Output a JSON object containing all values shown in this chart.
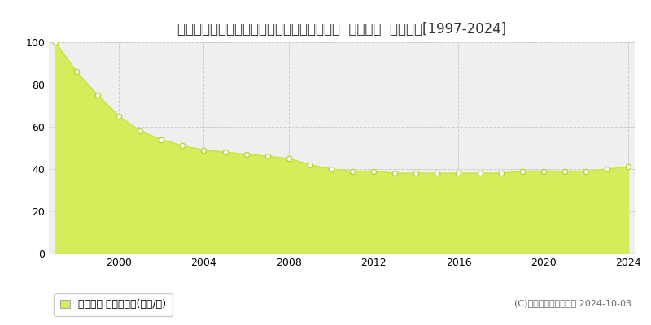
{
  "title": "千葉県松戸市小金きよしケ丘４丁目３番１１  基準地価  地価推移[1997-2024]",
  "years": [
    1997,
    1998,
    1999,
    2000,
    2001,
    2002,
    2003,
    2004,
    2005,
    2006,
    2007,
    2008,
    2009,
    2010,
    2011,
    2012,
    2013,
    2014,
    2015,
    2016,
    2017,
    2018,
    2019,
    2020,
    2021,
    2022,
    2023,
    2024
  ],
  "values": [
    100,
    86,
    75,
    65,
    58,
    54,
    51,
    49,
    48,
    47,
    46,
    45,
    42,
    40,
    39,
    39,
    38,
    38,
    38,
    38,
    38,
    38,
    39,
    39,
    39,
    39,
    40,
    41
  ],
  "line_color": "#c8e645",
  "fill_color": "#d4ed5a",
  "marker_color": "#ffffff",
  "marker_edge_color": "#b8d430",
  "bg_color": "#ffffff",
  "plot_bg_color": "#efefef",
  "grid_color": "#cccccc",
  "ylim": [
    0,
    100
  ],
  "yticks": [
    0,
    20,
    40,
    60,
    80,
    100
  ],
  "xticks": [
    2000,
    2004,
    2008,
    2012,
    2016,
    2020,
    2024
  ],
  "legend_label": "基準地価 平均坪単価(万円/坪)",
  "copyright_text": "(C)土地価格ドットコム 2024-10-03",
  "title_fontsize": 12,
  "tick_fontsize": 9,
  "legend_fontsize": 9
}
